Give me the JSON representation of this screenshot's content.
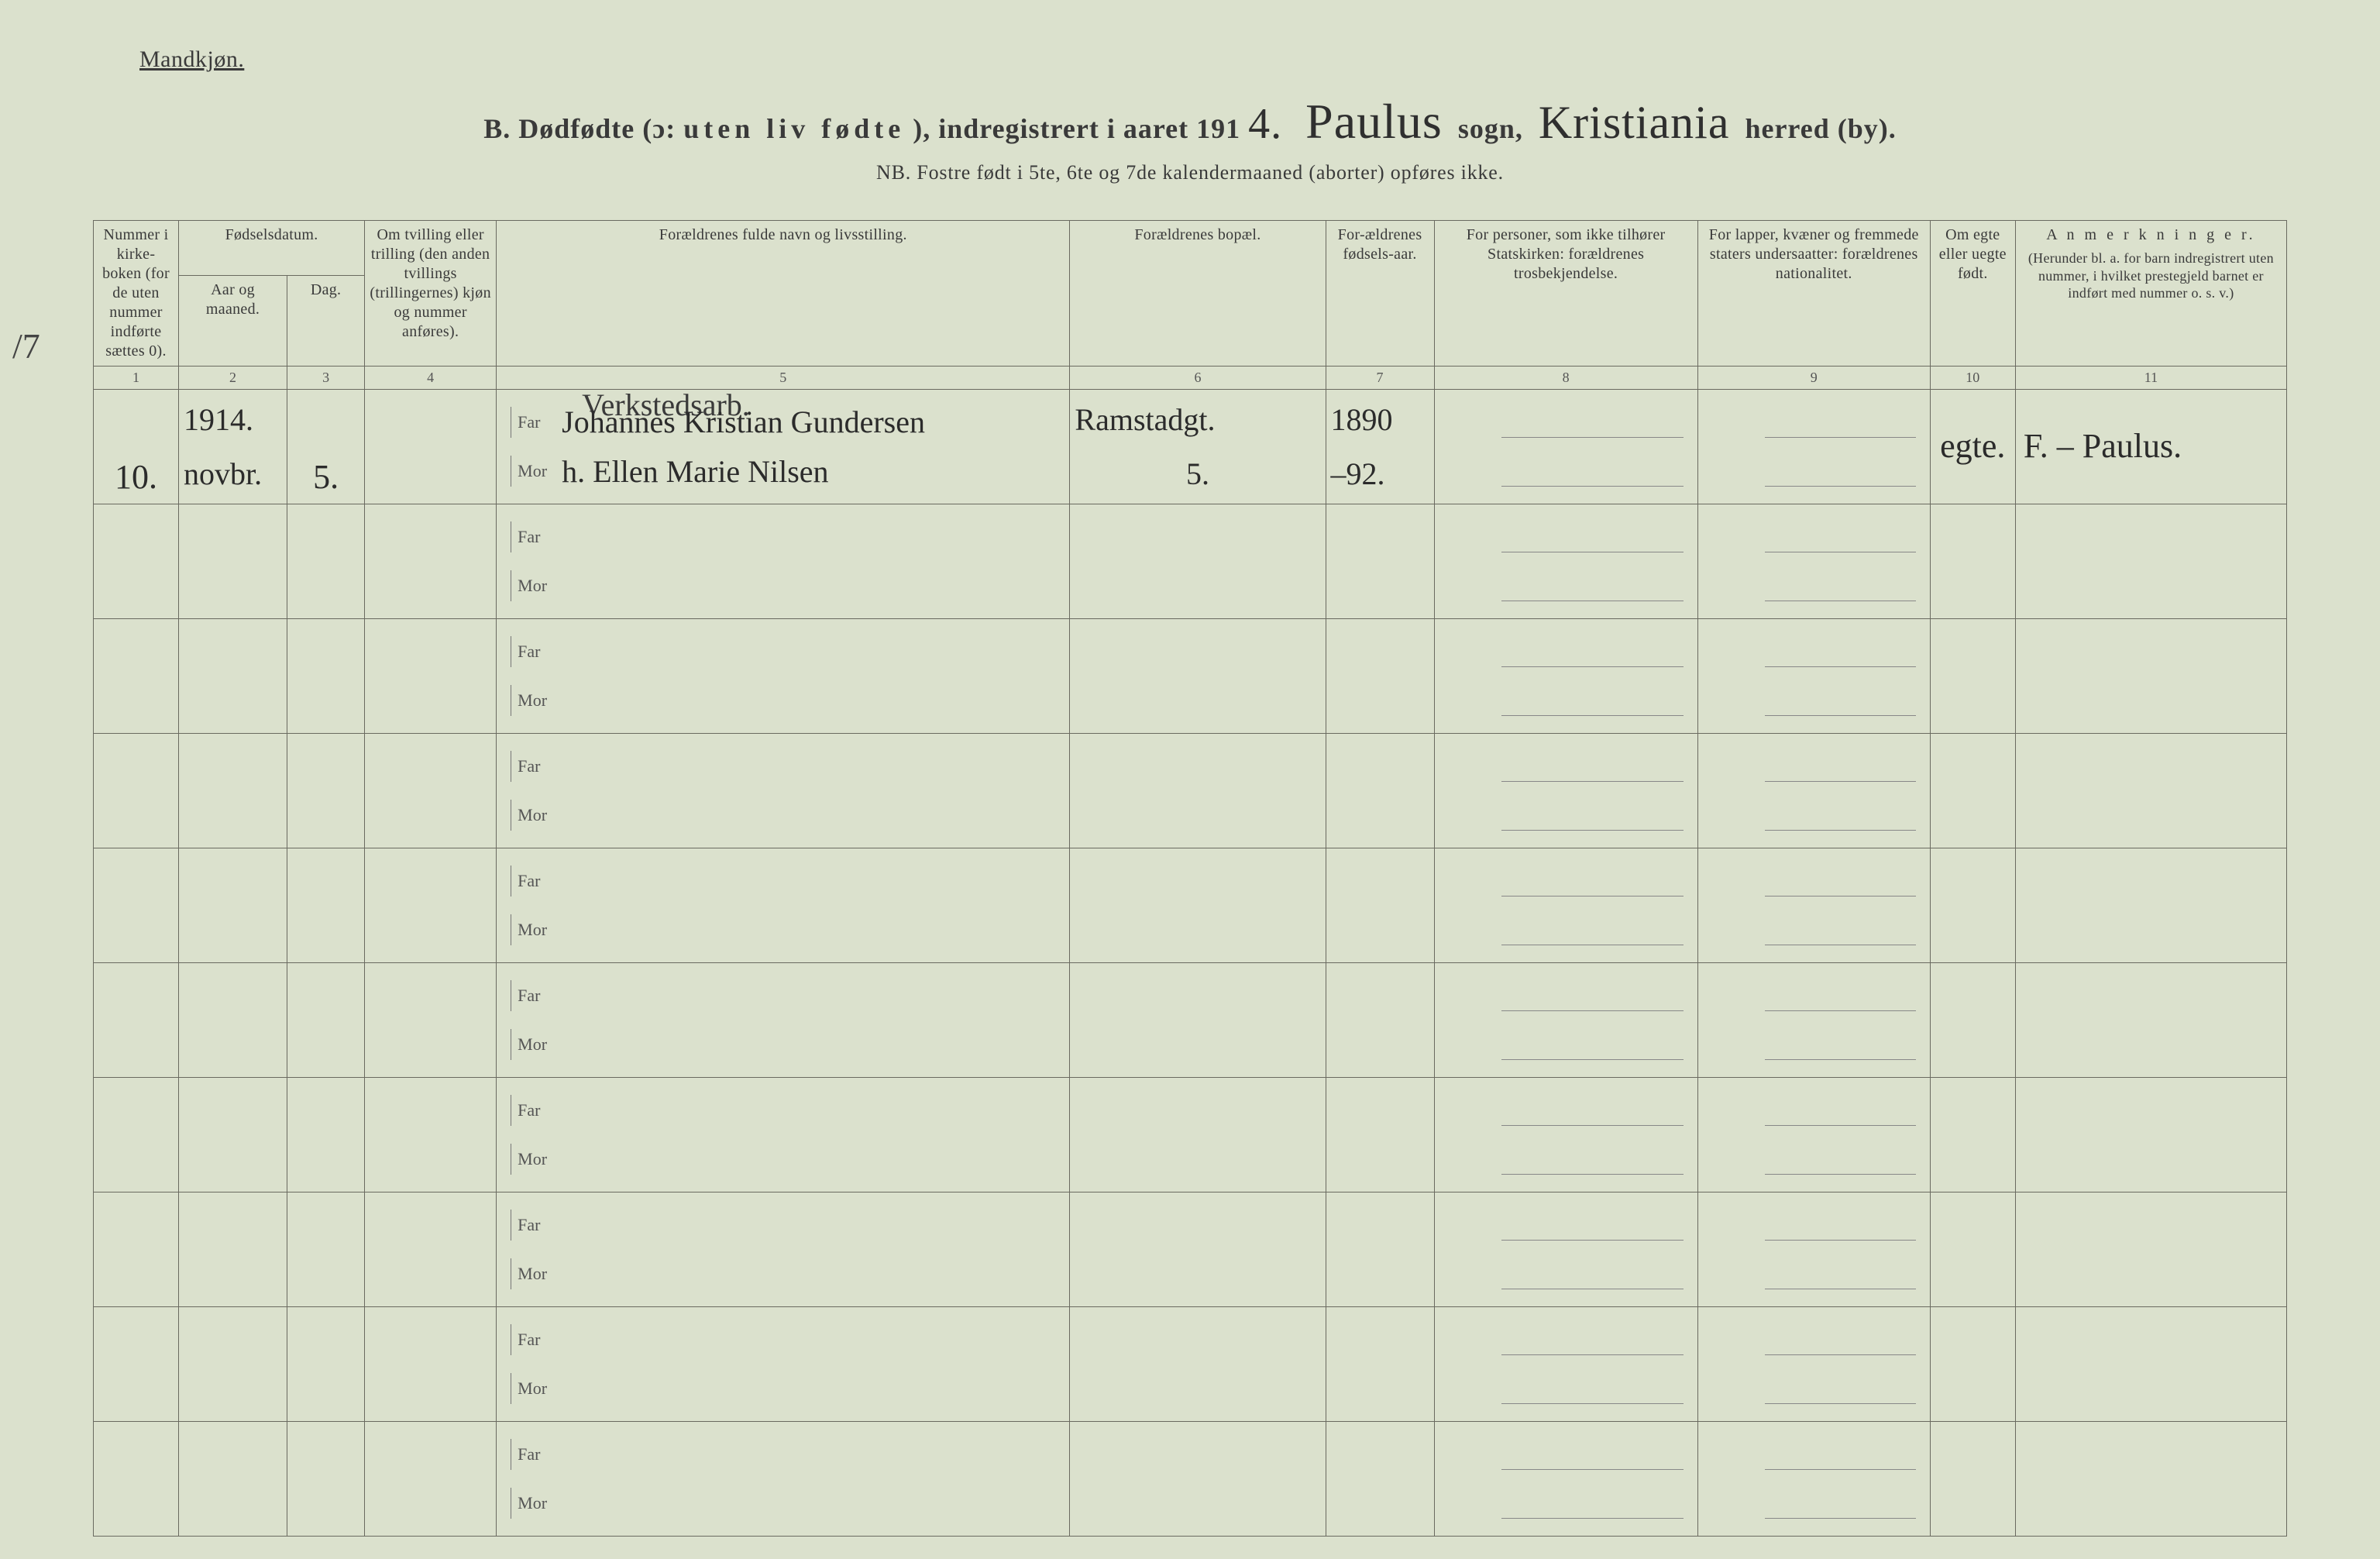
{
  "colors": {
    "paper": "#dbe1cd",
    "ink": "#3a3a3a",
    "rule": "#6a6a60",
    "hand": "#2b2b2b"
  },
  "corner_label": "Mandkjøn.",
  "title": {
    "prefix": "B.  Dødfødte (ɔ:",
    "spaced": "uten liv fødte",
    "mid": "), indregistrert i aaret 191",
    "year_suffix": "4.",
    "sogn_hand": "Paulus",
    "sogn_word": "sogn,",
    "herred_hand": "Kristiania",
    "herred_word": "herred (by)."
  },
  "subtitle": "NB.  Fostre født i 5te, 6te og 7de kalendermaaned (aborter) opføres ikke.",
  "headers": {
    "c1": "Nummer i kirke-boken (for de uten nummer indførte sættes 0).",
    "c2_group": "Fødselsdatum.",
    "c2": "Aar og maaned.",
    "c3": "Dag.",
    "c4": "Om tvilling eller trilling (den anden tvillings (trillingernes) kjøn og nummer anføres).",
    "c5": "Forældrenes fulde navn og livsstilling.",
    "c6": "Forældrenes bopæl.",
    "c7": "For-ældrenes fødsels-aar.",
    "c8": "For personer, som ikke tilhører Statskirken: forældrenes trosbekjendelse.",
    "c9": "For lapper, kvæner og fremmede staters undersaatter: forældrenes nationalitet.",
    "c10": "Om egte eller uegte født.",
    "c11_title": "A n m e r k n i n g e r.",
    "c11_sub": "(Herunder bl. a. for barn indregistrert uten nummer, i hvilket prestegjeld barnet er indført med nummer o. s. v.)"
  },
  "colnums": [
    "1",
    "2",
    "3",
    "4",
    "5",
    "6",
    "7",
    "8",
    "9",
    "10",
    "11"
  ],
  "far_label": "Far",
  "mor_label": "Mor",
  "entry": {
    "number": "10.",
    "year": "1914.",
    "month": "novbr.",
    "day": "5.",
    "occupation": "Verkstedsarb.",
    "far_name": "Johannes Kristian Gundersen",
    "mor_prefix": "h.",
    "mor_name": "Ellen Marie Nilsen",
    "address_top": "Ramstadgt.",
    "address_bot": "5.",
    "far_year": "1890",
    "mor_year": "–92.",
    "legit": "egte.",
    "remark": "F. – Paulus."
  },
  "marginal_mark": "/7",
  "blank_row_count": 9
}
